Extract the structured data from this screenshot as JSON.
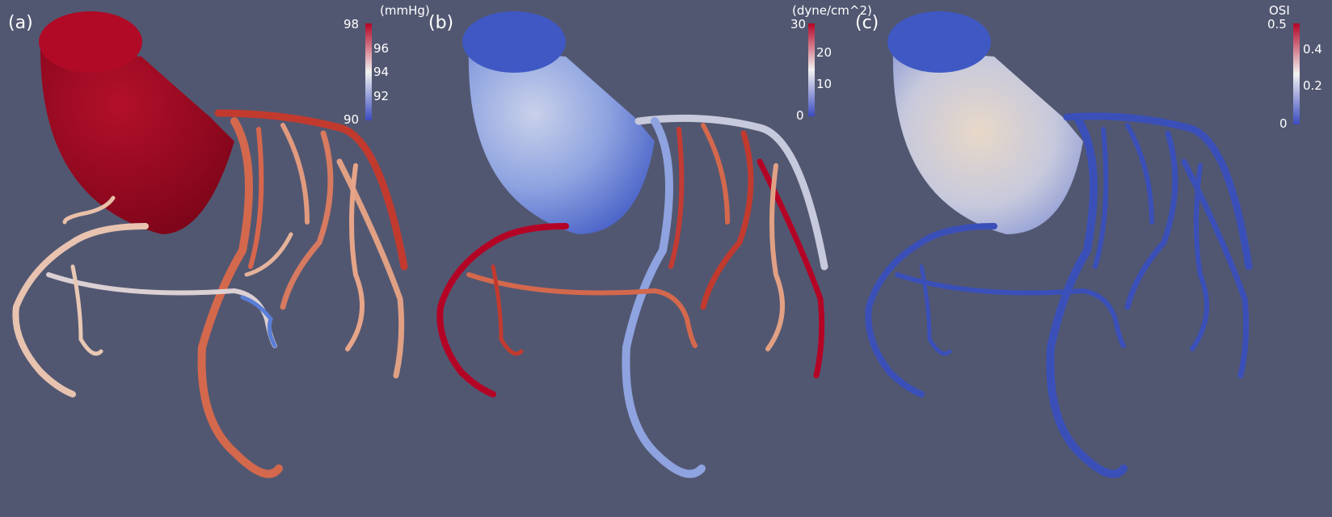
{
  "background_color": "#525771",
  "panels": [
    {
      "label": "(a)",
      "colorbar": {
        "title": "(mmHg)",
        "ticks": [
          "98",
          "96",
          "94",
          "92",
          "90"
        ],
        "low_color": "#3b4cc0",
        "high_color": "#b40426"
      }
    },
    {
      "label": "(b)",
      "colorbar": {
        "title": "(dyne/cm^2)",
        "ticks": [
          "30",
          "20",
          "10",
          "0"
        ],
        "low_color": "#3b4cc0",
        "high_color": "#b40426"
      }
    },
    {
      "label": "(c)",
      "colorbar": {
        "title": "OSI",
        "ticks": [
          "0.5",
          "0.4",
          "0.2",
          "0"
        ],
        "low_color": "#3b4cc0",
        "high_color": "#b40426"
      }
    }
  ]
}
